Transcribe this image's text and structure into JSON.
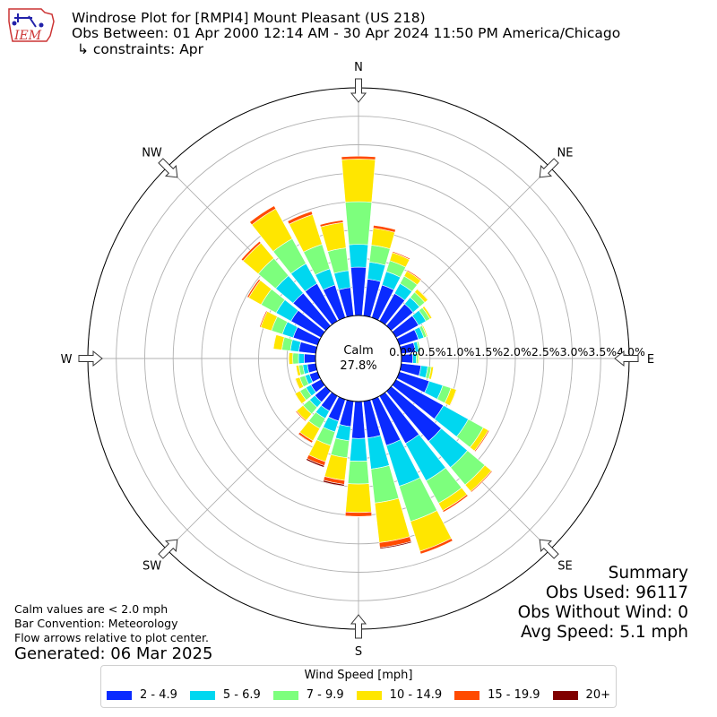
{
  "header": {
    "title": "Windrose Plot for [RMPI4] Mount Pleasant (US 218)",
    "obs_between": "Obs Between: 01 Apr 2000 12:14 AM - 30 Apr 2024 11:50 PM America/Chicago",
    "constraints": "↳ constraints: Apr",
    "logo_text": "IEM"
  },
  "calm": {
    "label": "Calm",
    "value": "27.8%"
  },
  "notes": {
    "calm_note": "Calm values are < 2.0 mph",
    "bar_convention": "Bar Convention: Meteorology",
    "flow_note": "Flow arrows relative to plot center.",
    "generated": "Generated: 06 Mar 2025"
  },
  "summary": {
    "title": "Summary",
    "obs_used": "Obs Used: 96117",
    "obs_without_wind": "Obs Without Wind: 0",
    "avg_speed": "Avg Speed: 5.1 mph"
  },
  "legend": {
    "title": "Wind Speed [mph]"
  },
  "colors": {
    "bin_2_4_9": "#0a2bff",
    "bin_5_6_9": "#00d7f0",
    "bin_7_9_9": "#7dff7d",
    "bin_10_14_9": "#ffe600",
    "bin_15_19_9": "#ff4a00",
    "bin_20_plus": "#800000"
  },
  "chart_data": {
    "type": "windrose",
    "directions": [
      "N",
      "NNE",
      "NNE",
      "NE",
      "NE",
      "ENE",
      "ENE",
      "E",
      "E",
      "ESE",
      "ESE",
      "SE",
      "SE",
      "SSE",
      "SSE",
      "S",
      "S",
      "SSW",
      "SSW",
      "SW",
      "SW",
      "WSW",
      "WSW",
      "W",
      "W",
      "WNW",
      "WNW",
      "NW",
      "NW",
      "NNW",
      "NNW",
      "N"
    ],
    "direction_labels": [
      "N",
      "NE",
      "E",
      "SE",
      "S",
      "SW",
      "W",
      "NW"
    ],
    "bin_degrees": 11.25,
    "radial_ticks": [
      "0.0%",
      "0.5%",
      "1.0%",
      "1.5%",
      "2.0%",
      "2.5%",
      "3.0%",
      "3.5%",
      "4.0%"
    ],
    "rmax": 4.0,
    "series": [
      {
        "name": "2 - 4.9",
        "values": [
          0.85,
          0.65,
          0.6,
          0.55,
          0.5,
          0.45,
          0.35,
          0.25,
          0.2,
          0.35,
          0.55,
          0.95,
          1.15,
          0.95,
          0.85,
          0.65,
          0.65,
          0.45,
          0.4,
          0.3,
          0.25,
          0.2,
          0.15,
          0.15,
          0.2,
          0.3,
          0.45,
          0.6,
          0.75,
          0.75,
          0.6,
          0.5
        ]
      },
      {
        "name": "5 - 6.9",
        "values": [
          0.4,
          0.3,
          0.25,
          0.2,
          0.15,
          0.15,
          0.1,
          0.06,
          0.06,
          0.12,
          0.25,
          0.5,
          0.6,
          0.75,
          0.75,
          0.55,
          0.4,
          0.25,
          0.2,
          0.15,
          0.12,
          0.1,
          0.08,
          0.08,
          0.1,
          0.15,
          0.2,
          0.3,
          0.4,
          0.4,
          0.3,
          0.3
        ]
      },
      {
        "name": "7 - 9.9",
        "values": [
          0.75,
          0.3,
          0.2,
          0.15,
          0.12,
          0.08,
          0.05,
          0.03,
          0.03,
          0.06,
          0.15,
          0.3,
          0.4,
          0.45,
          0.65,
          0.6,
          0.4,
          0.3,
          0.25,
          0.2,
          0.15,
          0.12,
          0.1,
          0.07,
          0.1,
          0.15,
          0.2,
          0.3,
          0.4,
          0.5,
          0.45,
          0.4
        ]
      },
      {
        "name": "10 - 14.9",
        "values": [
          0.75,
          0.3,
          0.15,
          0.1,
          0.07,
          0.04,
          0.02,
          0.01,
          0.02,
          0.04,
          0.1,
          0.1,
          0.15,
          0.15,
          0.55,
          0.7,
          0.5,
          0.4,
          0.3,
          0.25,
          0.15,
          0.1,
          0.08,
          0.05,
          0.07,
          0.15,
          0.2,
          0.25,
          0.35,
          0.6,
          0.55,
          0.45
        ]
      },
      {
        "name": "15 - 19.9",
        "values": [
          0.05,
          0.05,
          0.02,
          0.02,
          0.01,
          0.01,
          0.0,
          0.0,
          0.0,
          0.0,
          0.01,
          0.02,
          0.02,
          0.03,
          0.05,
          0.09,
          0.07,
          0.07,
          0.07,
          0.04,
          0.02,
          0.01,
          0.01,
          0.0,
          0.01,
          0.01,
          0.02,
          0.03,
          0.04,
          0.06,
          0.06,
          0.04
        ]
      },
      {
        "name": "20+",
        "values": [
          0.0,
          0.0,
          0.0,
          0.0,
          0.0,
          0.0,
          0.0,
          0.0,
          0.0,
          0.0,
          0.0,
          0.0,
          0.0,
          0.0,
          0.0,
          0.02,
          0.01,
          0.03,
          0.03,
          0.01,
          0.0,
          0.0,
          0.0,
          0.0,
          0.0,
          0.0,
          0.0,
          0.0,
          0.0,
          0.0,
          0.0,
          0.0
        ]
      }
    ],
    "grid": true
  }
}
